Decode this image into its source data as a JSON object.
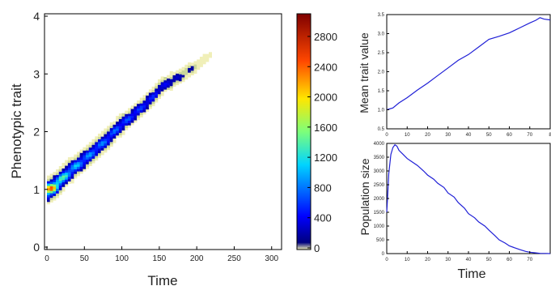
{
  "chart_data": [
    {
      "type": "heatmap",
      "xlabel": "Time",
      "ylabel": "Phenotypic trait",
      "xlim": [
        0,
        310
      ],
      "ylim": [
        0,
        4
      ],
      "xticks": [
        "0",
        "50",
        "100",
        "150",
        "200",
        "250",
        "300"
      ],
      "yticks": [
        "0",
        "1",
        "2",
        "3",
        "4"
      ],
      "colorbar": {
        "min": 0,
        "max": 3100,
        "ticks": [
          "0",
          "400",
          "800",
          "1200",
          "1600",
          "2000",
          "2400",
          "2800"
        ],
        "colormap": "jet",
        "low_color": "#f0efb8"
      },
      "ridge": {
        "x": [
          0,
          10,
          20,
          30,
          40,
          50,
          60,
          70,
          80,
          90,
          100,
          110,
          120,
          130,
          140,
          150,
          160,
          170,
          180,
          190,
          200,
          210,
          220
        ],
        "y": [
          1.0,
          1.08,
          1.22,
          1.34,
          1.45,
          1.55,
          1.67,
          1.79,
          1.9,
          2.05,
          2.16,
          2.27,
          2.38,
          2.5,
          2.62,
          2.78,
          2.86,
          2.93,
          3.0,
          3.1,
          3.17,
          3.29,
          3.37
        ],
        "intensity": [
          2800,
          2400,
          1500,
          1300,
          1100,
          1000,
          950,
          900,
          850,
          800,
          750,
          700,
          650,
          600,
          550,
          450,
          350,
          250,
          180,
          120,
          60,
          25,
          8
        ]
      }
    },
    {
      "type": "line",
      "xlabel": "",
      "ylabel": "Mean trait value",
      "xlim": [
        0,
        80
      ],
      "ylim": [
        0.5,
        3.5
      ],
      "xticks": [
        "0",
        "10",
        "20",
        "30",
        "40",
        "50",
        "60",
        "70",
        "8"
      ],
      "yticks": [
        "0.5",
        "1.0",
        "1.5",
        "2.0",
        "2.5",
        "3.0",
        "3.5"
      ],
      "series": [
        {
          "color": "#1f1fd6",
          "x": [
            0,
            3,
            6,
            10,
            15,
            20,
            25,
            30,
            35,
            40,
            45,
            50,
            55,
            60,
            65,
            70,
            73,
            75,
            77,
            80
          ],
          "y": [
            1.0,
            1.05,
            1.18,
            1.32,
            1.52,
            1.7,
            1.9,
            2.1,
            2.3,
            2.45,
            2.65,
            2.85,
            2.93,
            3.02,
            3.15,
            3.28,
            3.35,
            3.42,
            3.38,
            3.36
          ]
        }
      ]
    },
    {
      "type": "line",
      "xlabel": "Time",
      "ylabel": "Population size",
      "xlim": [
        0,
        80
      ],
      "ylim": [
        0,
        4000
      ],
      "xticks": [
        "0",
        "10",
        "20",
        "30",
        "40",
        "50",
        "60",
        "70"
      ],
      "yticks": [
        "0",
        "500",
        "1000",
        "1500",
        "2000",
        "2500",
        "3000",
        "3500",
        "4000"
      ],
      "series": [
        {
          "color": "#1f1fd6",
          "x": [
            0,
            0.5,
            1,
            2,
            3,
            4,
            5,
            6,
            8,
            10,
            12,
            15,
            18,
            20,
            23,
            25,
            28,
            30,
            33,
            35,
            38,
            40,
            43,
            45,
            48,
            50,
            53,
            55,
            58,
            60,
            63,
            65,
            68,
            70,
            73,
            75,
            78,
            80
          ],
          "y": [
            1500,
            2200,
            2900,
            3600,
            3850,
            3950,
            3900,
            3750,
            3600,
            3450,
            3350,
            3200,
            3000,
            2850,
            2700,
            2550,
            2400,
            2200,
            2050,
            1850,
            1650,
            1450,
            1300,
            1150,
            1000,
            850,
            650,
            500,
            380,
            280,
            200,
            150,
            80,
            50,
            25,
            10,
            5,
            0
          ]
        }
      ]
    }
  ]
}
